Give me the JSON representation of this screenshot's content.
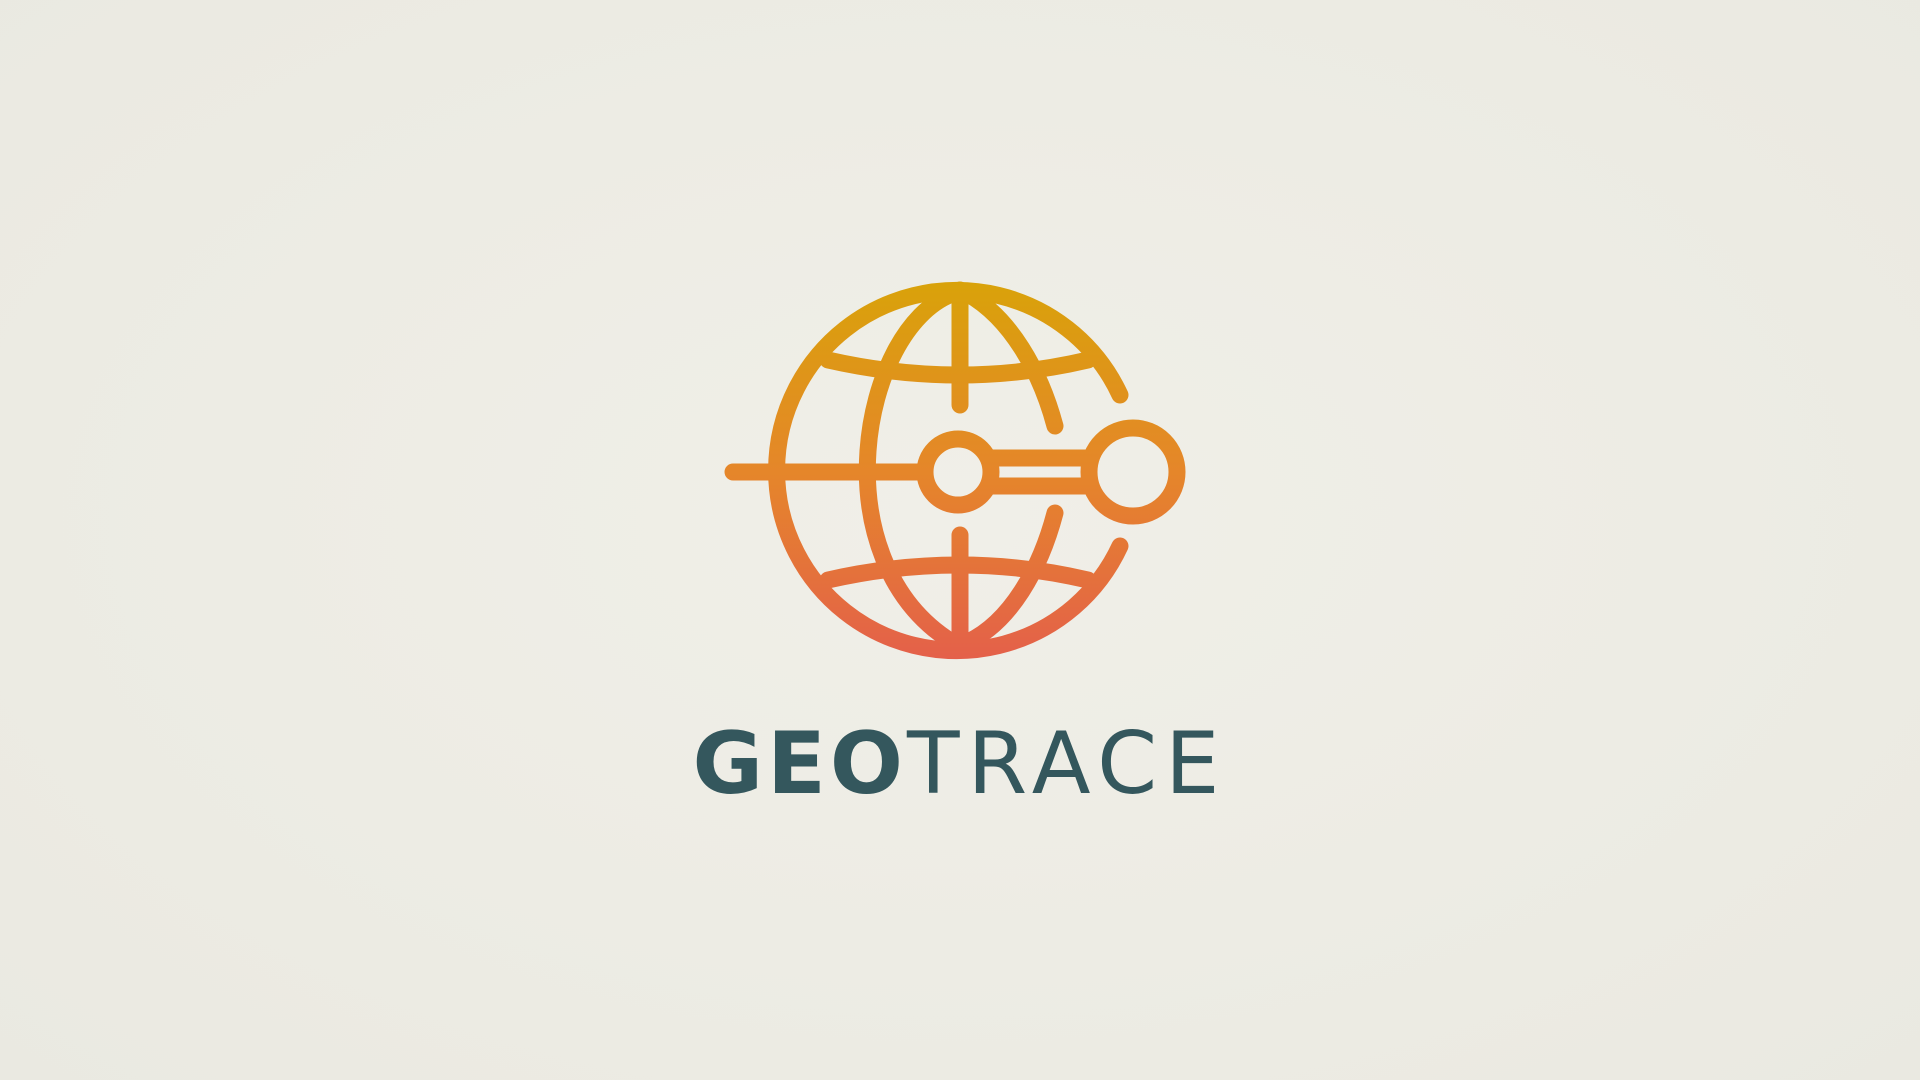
{
  "logo": {
    "name_part_bold": "GEO",
    "name_part_light": "TRACE",
    "icon": "globe-with-trace-route-icon"
  },
  "colors": {
    "background": "#edece4",
    "wordmark": "#34575d",
    "gradient_top": "#d9a20a",
    "gradient_mid": "#e5862a",
    "gradient_bottom": "#e4604a"
  }
}
